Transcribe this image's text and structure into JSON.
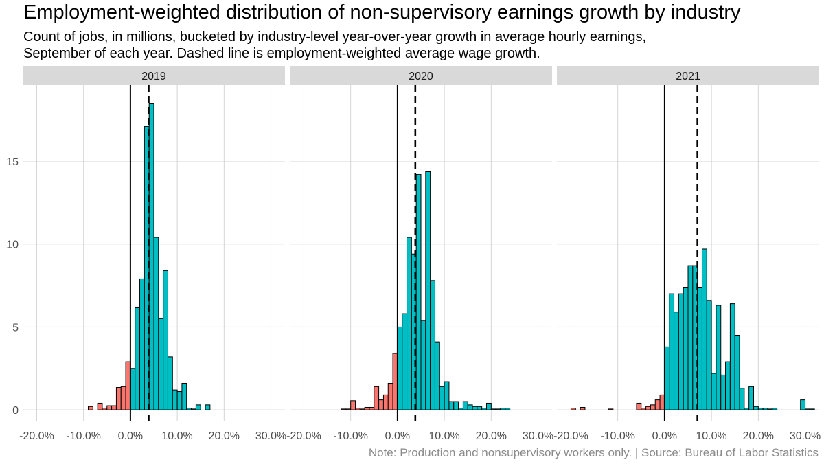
{
  "title": "Employment-weighted distribution of non-supervisory earnings growth by industry",
  "subtitle_lines": [
    "Count of jobs, in millions, bucketed by industry-level year-over-year growth in average hourly earnings,",
    "September of each year. Dashed line is employment-weighted average wage growth."
  ],
  "note": "Note: Production and nonsupervisory workers only. | Source: Bureau of Labor Statistics",
  "colors": {
    "negative": "#f8766d",
    "positive": "#00bfc4",
    "strip": "#d9d9d9"
  },
  "chart_data": {
    "type": "bar",
    "subtype": "faceted-histogram",
    "bin_width_pct": 1,
    "x_ticks": [
      -20,
      -10,
      0,
      10,
      20,
      30
    ],
    "x_tick_labels": [
      "-20.0%",
      "-10.0%",
      "0.0%",
      "10.0%",
      "20.0%",
      "30.0%"
    ],
    "xlim": [
      -23,
      33
    ],
    "y_ticks": [
      0,
      5,
      10,
      15
    ],
    "y_tick_labels": [
      "0",
      "5",
      "10",
      "15"
    ],
    "ylim": [
      -0.7,
      19.6
    ],
    "grid": true,
    "facets": [
      {
        "label": "2019",
        "mean": 3.9,
        "bins": [
          [
            -9,
            0.2
          ],
          [
            -7,
            0.4
          ],
          [
            -6,
            0.1
          ],
          [
            -5,
            0.25
          ],
          [
            -4,
            0.25
          ],
          [
            -3,
            1.35
          ],
          [
            -2,
            1.4
          ],
          [
            -1,
            2.9
          ],
          [
            0,
            2.5
          ],
          [
            1,
            6.2
          ],
          [
            2,
            7.9
          ],
          [
            3,
            17.1
          ],
          [
            4,
            18.5
          ],
          [
            5,
            10.4
          ],
          [
            6,
            5.5
          ],
          [
            7,
            8.4
          ],
          [
            8,
            3.2
          ],
          [
            9,
            1.2
          ],
          [
            10,
            1.1
          ],
          [
            11,
            1.6
          ],
          [
            12,
            0.1
          ],
          [
            13,
            0.05
          ],
          [
            14,
            0.3
          ],
          [
            16,
            0.3
          ]
        ]
      },
      {
        "label": "2020",
        "mean": 3.8,
        "bins": [
          [
            -12,
            0.05
          ],
          [
            -11,
            0.05
          ],
          [
            -10,
            0.55
          ],
          [
            -9,
            0.1
          ],
          [
            -8,
            0.05
          ],
          [
            -7,
            0.15
          ],
          [
            -6,
            0.15
          ],
          [
            -5,
            1.4
          ],
          [
            -4,
            0.6
          ],
          [
            -3,
            0.9
          ],
          [
            -2,
            1.6
          ],
          [
            -1,
            3.4
          ],
          [
            0,
            5.0
          ],
          [
            1,
            5.8
          ],
          [
            2,
            10.4
          ],
          [
            3,
            9.4
          ],
          [
            4,
            14.2
          ],
          [
            5,
            5.4
          ],
          [
            6,
            14.4
          ],
          [
            7,
            7.8
          ],
          [
            8,
            4.1
          ],
          [
            9,
            1.4
          ],
          [
            10,
            1.7
          ],
          [
            11,
            0.5
          ],
          [
            12,
            0.5
          ],
          [
            13,
            0.1
          ],
          [
            14,
            0.5
          ],
          [
            15,
            0.3
          ],
          [
            16,
            0.2
          ],
          [
            17,
            0.2
          ],
          [
            18,
            0.1
          ],
          [
            19,
            0.4
          ],
          [
            20,
            0.05
          ],
          [
            21,
            0.05
          ],
          [
            22,
            0.1
          ],
          [
            23,
            0.1
          ]
        ]
      },
      {
        "label": "2021",
        "mean": 7.0,
        "bins": [
          [
            -20,
            0.1
          ],
          [
            -18,
            0.15
          ],
          [
            -12,
            0.05
          ],
          [
            -6,
            0.4
          ],
          [
            -5,
            0.1
          ],
          [
            -4,
            0.2
          ],
          [
            -3,
            0.3
          ],
          [
            -2,
            0.6
          ],
          [
            -1,
            0.9
          ],
          [
            0,
            3.8
          ],
          [
            1,
            7.0
          ],
          [
            2,
            5.9
          ],
          [
            3,
            7.0
          ],
          [
            4,
            7.4
          ],
          [
            5,
            8.7
          ],
          [
            6,
            8.7
          ],
          [
            7,
            7.4
          ],
          [
            8,
            9.7
          ],
          [
            9,
            6.6
          ],
          [
            10,
            2.2
          ],
          [
            11,
            6.3
          ],
          [
            12,
            2.1
          ],
          [
            13,
            2.9
          ],
          [
            14,
            6.4
          ],
          [
            15,
            4.5
          ],
          [
            16,
            1.3
          ],
          [
            17,
            0.1
          ],
          [
            18,
            1.4
          ],
          [
            19,
            0.2
          ],
          [
            20,
            0.1
          ],
          [
            21,
            0.1
          ],
          [
            22,
            0.05
          ],
          [
            23,
            0.1
          ],
          [
            29,
            0.6
          ],
          [
            30,
            0.05
          ],
          [
            31,
            0.05
          ]
        ]
      }
    ]
  }
}
